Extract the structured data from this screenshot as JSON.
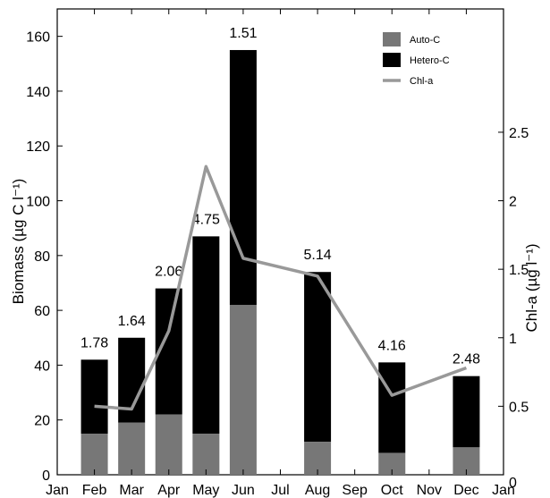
{
  "chart_data": {
    "type": "bar",
    "x_tick_labels": [
      "Jan",
      "Feb",
      "Mar",
      "Apr",
      "May",
      "Jun",
      "Jul",
      "Aug",
      "Sep",
      "Oct",
      "Nov",
      "Dec",
      "Jan"
    ],
    "categories": [
      "Feb",
      "Mar",
      "Apr",
      "May",
      "Jun",
      "Aug",
      "Oct",
      "Dec"
    ],
    "category_positions": [
      1,
      2,
      3,
      4,
      5,
      7,
      9,
      11
    ],
    "xlim": [
      0,
      12
    ],
    "ylabel": "Biomass (µg C l⁻¹)",
    "ylim": [
      0,
      170
    ],
    "y_ticks": [
      0,
      20,
      40,
      60,
      80,
      100,
      120,
      140,
      160
    ],
    "y2label": "Chl-a (µg l⁻¹)",
    "y2lim": [
      0,
      3.4
    ],
    "y2_ticks": [
      0,
      0.5,
      1,
      1.5,
      2,
      2.5
    ],
    "series": [
      {
        "name": "Auto-C",
        "kind": "bar",
        "stacked": true,
        "color": "#777777",
        "values": [
          15,
          19,
          22,
          15,
          62,
          12,
          8,
          10
        ]
      },
      {
        "name": "Hetero-C",
        "kind": "bar",
        "stacked": true,
        "color": "#000000",
        "values": [
          27,
          31,
          46,
          72,
          93,
          62,
          33,
          26
        ]
      },
      {
        "name": "Chl-a",
        "kind": "line",
        "axis": "right",
        "color": "#999999",
        "values": [
          0.5,
          0.48,
          1.05,
          2.25,
          1.58,
          1.45,
          0.58,
          0.78
        ]
      }
    ],
    "bar_top_labels": [
      "1.78",
      "1.64",
      "2.06",
      "4.75",
      "1.51",
      "5.14",
      "4.16",
      "2.48"
    ],
    "legend_position": "top-right",
    "grid": false
  }
}
